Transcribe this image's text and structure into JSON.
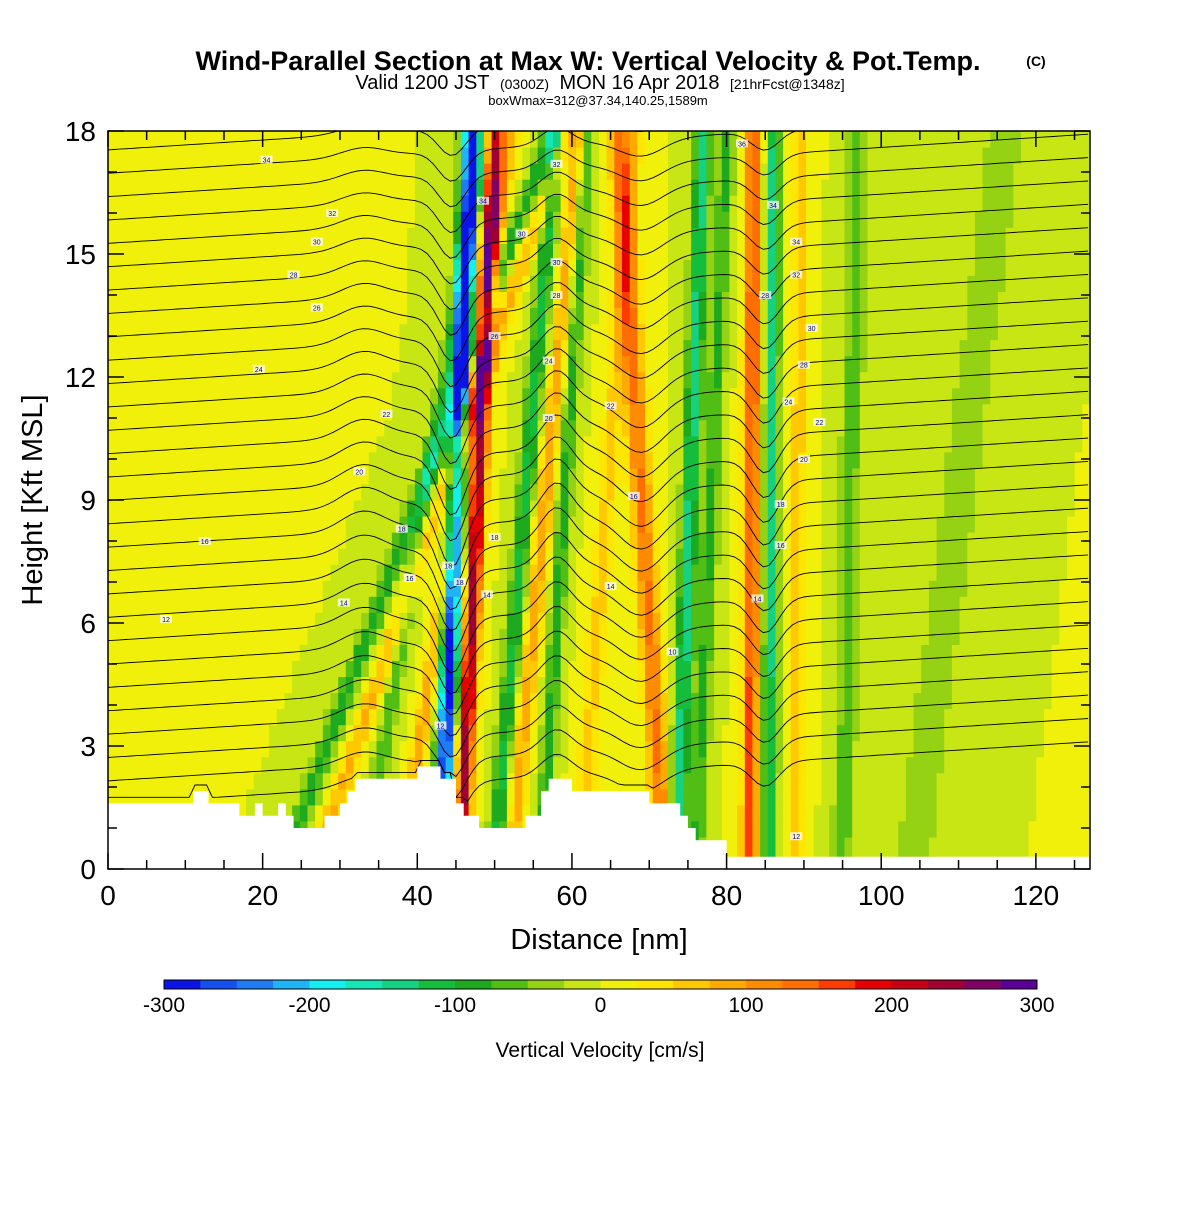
{
  "header": {
    "title": "Wind-Parallel Section at Max W: Vertical Velocity & Pot.Temp.",
    "copyright": "(C)",
    "valid_prefix": "Valid 1200 JST",
    "valid_utc": "(0300Z)",
    "valid_date": "MON 16 Apr 2018",
    "forecast": "[21hrFcst@1348z]",
    "box_info": "boxWmax=312@37.34,140.25,1589m"
  },
  "chart_data": {
    "type": "heatmap",
    "xlabel": "Distance [nm]",
    "ylabel": "Height [Kft MSL]",
    "xlim": [
      0,
      127
    ],
    "ylim": [
      0,
      18
    ],
    "x_ticks": [
      0,
      20,
      40,
      60,
      80,
      100,
      120
    ],
    "y_ticks": [
      0,
      3,
      6,
      9,
      12,
      15,
      18
    ],
    "colorbar": {
      "label": "Vertical Velocity [cm/s]",
      "range": [
        -300,
        300
      ],
      "tick_values": [
        -300,
        -200,
        -100,
        0,
        100,
        200,
        300
      ],
      "tick_labels": [
        "-300",
        "-200",
        "-100",
        "0",
        "100",
        "200",
        "300"
      ],
      "colors": [
        "#0a14e6",
        "#1450f0",
        "#1e7cf5",
        "#1eb4f5",
        "#14f0f0",
        "#14e6b4",
        "#14d282",
        "#14be3c",
        "#1eaa1e",
        "#50be14",
        "#96d214",
        "#c8e614",
        "#f0f00a",
        "#ffe600",
        "#ffc800",
        "#ffaa00",
        "#ff8c00",
        "#ff6e00",
        "#ff3c00",
        "#e60000",
        "#c80014",
        "#a00032",
        "#820064",
        "#5a0096"
      ]
    },
    "terrain": [
      [
        0,
        1.6
      ],
      [
        11,
        1.6
      ],
      [
        11,
        1.9
      ],
      [
        13,
        1.9
      ],
      [
        13,
        1.6
      ],
      [
        17,
        1.6
      ],
      [
        17,
        1.3
      ],
      [
        19,
        1.3
      ],
      [
        19,
        1.6
      ],
      [
        20,
        1.6
      ],
      [
        20,
        1.3
      ],
      [
        22,
        1.3
      ],
      [
        22,
        1.6
      ],
      [
        23,
        1.6
      ],
      [
        23,
        1.3
      ],
      [
        24,
        1.3
      ],
      [
        24,
        1.0
      ],
      [
        28,
        1.0
      ],
      [
        28,
        1.3
      ],
      [
        30,
        1.3
      ],
      [
        30,
        1.6
      ],
      [
        31,
        1.6
      ],
      [
        31,
        1.9
      ],
      [
        32,
        1.9
      ],
      [
        32,
        2.2
      ],
      [
        40,
        2.2
      ],
      [
        40,
        2.5
      ],
      [
        43,
        2.5
      ],
      [
        43,
        2.2
      ],
      [
        45,
        2.2
      ],
      [
        45,
        1.6
      ],
      [
        46,
        1.6
      ],
      [
        46,
        1.3
      ],
      [
        48,
        1.3
      ],
      [
        48,
        1.0
      ],
      [
        54,
        1.0
      ],
      [
        54,
        1.3
      ],
      [
        56,
        1.3
      ],
      [
        56,
        1.9
      ],
      [
        57,
        1.9
      ],
      [
        57,
        2.2
      ],
      [
        60,
        2.2
      ],
      [
        60,
        1.9
      ],
      [
        70,
        1.9
      ],
      [
        70,
        1.6
      ],
      [
        74,
        1.6
      ],
      [
        74,
        1.3
      ],
      [
        75,
        1.3
      ],
      [
        75,
        1.0
      ],
      [
        76,
        1.0
      ],
      [
        76,
        0.7
      ],
      [
        80,
        0.7
      ],
      [
        80,
        0.3
      ],
      [
        127,
        0.3
      ]
    ],
    "velocity_bands": [
      {
        "x0": 22.5,
        "x1": 57.5,
        "hw": 1.3,
        "w": -90
      },
      {
        "x0": 26.5,
        "x1": 59.5,
        "hw": 1.2,
        "w": 80
      },
      {
        "x0": 33,
        "x1": 49,
        "hw": 1.1,
        "w": -70
      },
      {
        "x0": 38,
        "x1": 52,
        "hw": 1.1,
        "w": 90
      },
      {
        "x0": 43,
        "x1": 47,
        "hw": 1.2,
        "w": -290
      },
      {
        "x0": 45.5,
        "x1": 50,
        "hw": 1.1,
        "w": 240
      },
      {
        "x0": 52,
        "x1": 61,
        "hw": 1.2,
        "w": 90
      },
      {
        "x0": 50,
        "x1": 58,
        "hw": 1.2,
        "w": -110
      },
      {
        "x0": 56,
        "x1": 62,
        "hw": 1.0,
        "w": -90
      },
      {
        "x0": 61,
        "x1": 68,
        "hw": 1.3,
        "w": 60
      },
      {
        "x0": 72,
        "x1": 66,
        "hw": 1.4,
        "w": 130
      },
      {
        "x0": 73.5,
        "x1": 77,
        "hw": 1.1,
        "w": -140
      },
      {
        "x0": 76,
        "x1": 80,
        "hw": 1.1,
        "w": -80
      },
      {
        "x0": 83,
        "x1": 83.5,
        "hw": 1.1,
        "w": 160
      },
      {
        "x0": 85.5,
        "x1": 86,
        "hw": 1.0,
        "w": -130
      },
      {
        "x0": 89,
        "x1": 89.5,
        "hw": 1.2,
        "w": 60
      },
      {
        "x0": 95,
        "x1": 97,
        "hw": 1.5,
        "w": -60
      },
      {
        "x0": 104,
        "x1": 116,
        "hw": 2.5,
        "w": -50
      }
    ],
    "isentrope_labels": [
      {
        "x": 20.5,
        "y": 17.3,
        "text": "34"
      },
      {
        "x": 29,
        "y": 16.0,
        "text": "32"
      },
      {
        "x": 27,
        "y": 15.3,
        "text": "30"
      },
      {
        "x": 24,
        "y": 14.5,
        "text": "28"
      },
      {
        "x": 27,
        "y": 13.7,
        "text": "26"
      },
      {
        "x": 19.5,
        "y": 12.2,
        "text": "24"
      },
      {
        "x": 36,
        "y": 11.1,
        "text": "22"
      },
      {
        "x": 32.5,
        "y": 9.7,
        "text": "20"
      },
      {
        "x": 38,
        "y": 8.3,
        "text": "18"
      },
      {
        "x": 12.5,
        "y": 8.0,
        "text": "16"
      },
      {
        "x": 39,
        "y": 7.1,
        "text": "16"
      },
      {
        "x": 30.5,
        "y": 6.5,
        "text": "14"
      },
      {
        "x": 7.5,
        "y": 6.1,
        "text": "12"
      },
      {
        "x": 44,
        "y": 7.4,
        "text": "18"
      },
      {
        "x": 45.5,
        "y": 7.0,
        "text": "18"
      },
      {
        "x": 43,
        "y": 3.5,
        "text": "12"
      },
      {
        "x": 48.5,
        "y": 16.3,
        "text": "34"
      },
      {
        "x": 53.5,
        "y": 15.5,
        "text": "30"
      },
      {
        "x": 58,
        "y": 17.2,
        "text": "32"
      },
      {
        "x": 58,
        "y": 14.8,
        "text": "30"
      },
      {
        "x": 58,
        "y": 14.0,
        "text": "28"
      },
      {
        "x": 50,
        "y": 13.0,
        "text": "26"
      },
      {
        "x": 57,
        "y": 12.4,
        "text": "24"
      },
      {
        "x": 57,
        "y": 11.0,
        "text": "20"
      },
      {
        "x": 65,
        "y": 11.3,
        "text": "22"
      },
      {
        "x": 50,
        "y": 8.1,
        "text": "18"
      },
      {
        "x": 49,
        "y": 6.7,
        "text": "14"
      },
      {
        "x": 68,
        "y": 9.1,
        "text": "16"
      },
      {
        "x": 65,
        "y": 6.9,
        "text": "14"
      },
      {
        "x": 73,
        "y": 5.3,
        "text": "10"
      },
      {
        "x": 82,
        "y": 17.7,
        "text": "36"
      },
      {
        "x": 86,
        "y": 16.2,
        "text": "34"
      },
      {
        "x": 89,
        "y": 15.3,
        "text": "34"
      },
      {
        "x": 89,
        "y": 14.5,
        "text": "32"
      },
      {
        "x": 85,
        "y": 14.0,
        "text": "28"
      },
      {
        "x": 91,
        "y": 13.2,
        "text": "30"
      },
      {
        "x": 90,
        "y": 12.3,
        "text": "28"
      },
      {
        "x": 88,
        "y": 11.4,
        "text": "24"
      },
      {
        "x": 92,
        "y": 10.9,
        "text": "22"
      },
      {
        "x": 90,
        "y": 10.0,
        "text": "20"
      },
      {
        "x": 87,
        "y": 8.9,
        "text": "18"
      },
      {
        "x": 87,
        "y": 7.9,
        "text": "16"
      },
      {
        "x": 84,
        "y": 6.6,
        "text": "14"
      },
      {
        "x": 89,
        "y": 0.8,
        "text": "12"
      }
    ]
  }
}
